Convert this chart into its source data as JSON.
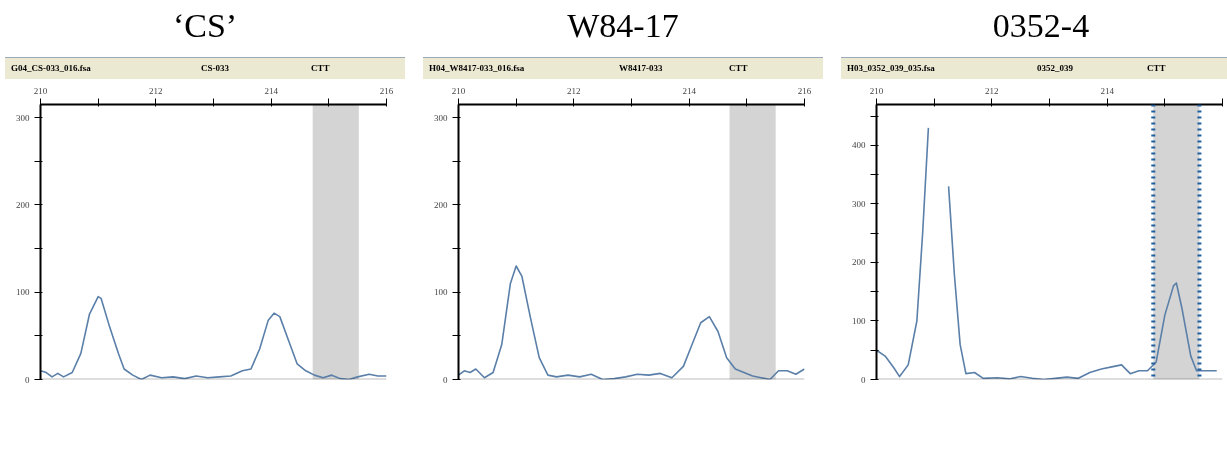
{
  "chart_data": [
    {
      "type": "line",
      "title": "‘CS’",
      "annotations": [
        "G04_CS-033_016.fsa",
        "CS-033",
        "CTT"
      ],
      "xlim": [
        210,
        216
      ],
      "ylim": [
        0,
        315
      ],
      "xticks": [
        210,
        {
          "value": 211,
          "label": null
        },
        212,
        {
          "value": 213,
          "label": null
        },
        214,
        {
          "value": 215,
          "label": null
        },
        216
      ],
      "yticks": [
        0,
        {
          "value": 50,
          "label": null
        },
        100,
        {
          "value": 150,
          "label": null
        },
        200,
        {
          "value": 250,
          "label": null
        },
        300
      ],
      "grid": false,
      "marker": "none",
      "line_style": "solid",
      "bands": [
        {
          "axis": "x",
          "from": 214.72,
          "to": 215.52,
          "color": "#d4d4d4"
        }
      ],
      "series": [
        {
          "color": "#5a7fa8",
          "x": [
            210.0,
            210.1,
            210.2,
            210.3,
            210.4,
            210.55,
            210.7,
            210.85,
            211.0,
            211.05,
            211.2,
            211.35,
            211.45,
            211.6,
            211.75,
            211.9,
            212.1,
            212.3,
            212.5,
            212.7,
            212.9,
            213.1,
            213.3,
            213.5,
            213.65,
            213.8,
            213.95,
            214.05,
            214.15,
            214.3,
            214.45,
            214.6,
            214.75,
            214.9,
            215.05,
            215.2,
            215.35,
            215.5,
            215.7,
            215.85,
            216.0
          ],
          "values": [
            10,
            8,
            3,
            7,
            3,
            8,
            30,
            75,
            95,
            93,
            60,
            30,
            12,
            5,
            0,
            5,
            2,
            3,
            1,
            4,
            2,
            3,
            4,
            10,
            12,
            35,
            68,
            76,
            72,
            45,
            18,
            10,
            5,
            2,
            5,
            1,
            0,
            3,
            6,
            4,
            4
          ]
        }
      ]
    },
    {
      "type": "line",
      "title": "W84-17",
      "annotations": [
        "H04_W8417-033_016.fsa",
        "W8417-033",
        "CTT"
      ],
      "xlim": [
        210,
        216
      ],
      "ylim": [
        0,
        315
      ],
      "xticks": [
        210,
        {
          "value": 211,
          "label": null
        },
        212,
        {
          "value": 213,
          "label": null
        },
        214,
        {
          "value": 215,
          "label": null
        },
        216
      ],
      "yticks": [
        0,
        {
          "value": 50,
          "label": null
        },
        100,
        {
          "value": 150,
          "label": null
        },
        200,
        {
          "value": 250,
          "label": null
        },
        300
      ],
      "grid": false,
      "marker": "none",
      "line_style": "solid",
      "bands": [
        {
          "axis": "x",
          "from": 214.7,
          "to": 215.5,
          "color": "#d4d4d4"
        }
      ],
      "series": [
        {
          "color": "#5a7fa8",
          "x": [
            210.0,
            210.1,
            210.2,
            210.3,
            210.45,
            210.6,
            210.75,
            210.9,
            211.0,
            211.1,
            211.25,
            211.4,
            211.55,
            211.7,
            211.9,
            212.1,
            212.3,
            212.5,
            212.7,
            212.9,
            213.1,
            213.3,
            213.5,
            213.7,
            213.9,
            214.05,
            214.2,
            214.35,
            214.5,
            214.65,
            214.8,
            214.95,
            215.1,
            215.25,
            215.4,
            215.55,
            215.7,
            215.85,
            216.0
          ],
          "values": [
            5,
            10,
            8,
            12,
            2,
            8,
            40,
            110,
            130,
            118,
            70,
            25,
            5,
            3,
            5,
            3,
            6,
            0,
            1,
            3,
            6,
            5,
            7,
            2,
            15,
            40,
            65,
            72,
            55,
            25,
            12,
            8,
            4,
            2,
            0,
            10,
            10,
            6,
            12
          ]
        }
      ]
    },
    {
      "type": "line",
      "title": "0352-4",
      "annotations": [
        "H03_0352_039_035.fsa",
        "0352_039",
        "CTT"
      ],
      "xlim": [
        210,
        216
      ],
      "ylim": [
        0,
        470
      ],
      "xticks": [
        210,
        {
          "value": 211,
          "label": null
        },
        212,
        {
          "value": 213,
          "label": null
        },
        214,
        {
          "value": 215,
          "label": null
        },
        {
          "value": 216,
          "label": null
        }
      ],
      "yticks": [
        0,
        {
          "value": 50,
          "label": null
        },
        100,
        {
          "value": 150,
          "label": null
        },
        200,
        {
          "value": 250,
          "label": null
        },
        300,
        {
          "value": 350,
          "label": null
        },
        400,
        {
          "value": 450,
          "label": null
        }
      ],
      "grid": false,
      "marker": "none",
      "line_style": "solid",
      "bands": [
        {
          "axis": "x",
          "from": 214.8,
          "to": 215.6,
          "color": "#d4d4d4"
        }
      ],
      "ref_lines": [
        {
          "axis": "x",
          "value": 214.8,
          "color": "#1f5fa0",
          "line_style": "dotted"
        },
        {
          "axis": "x",
          "value": 215.6,
          "color": "#1f5fa0",
          "line_style": "dotted"
        }
      ],
      "series": [
        {
          "color": "#5a7fa8",
          "x": [
            210.0,
            210.15,
            210.3,
            210.4,
            210.55,
            210.7,
            210.8,
            210.9,
            210.95,
            211.15,
            211.25,
            211.35,
            211.45,
            211.55,
            211.7,
            211.85,
            212.1,
            212.3,
            212.5,
            212.7,
            212.9,
            213.1,
            213.3,
            213.5,
            213.7,
            213.9,
            214.1,
            214.25,
            214.4,
            214.55,
            214.7,
            214.85,
            215.0,
            215.15,
            215.2,
            215.3,
            215.45,
            215.55,
            215.7,
            215.9
          ],
          "values": [
            50,
            40,
            20,
            5,
            25,
            100,
            250,
            430,
            null,
            null,
            330,
            180,
            60,
            10,
            12,
            2,
            3,
            1,
            5,
            2,
            0,
            2,
            4,
            2,
            12,
            18,
            22,
            25,
            10,
            15,
            15,
            30,
            110,
            160,
            165,
            120,
            40,
            15,
            15,
            15
          ]
        }
      ]
    }
  ]
}
